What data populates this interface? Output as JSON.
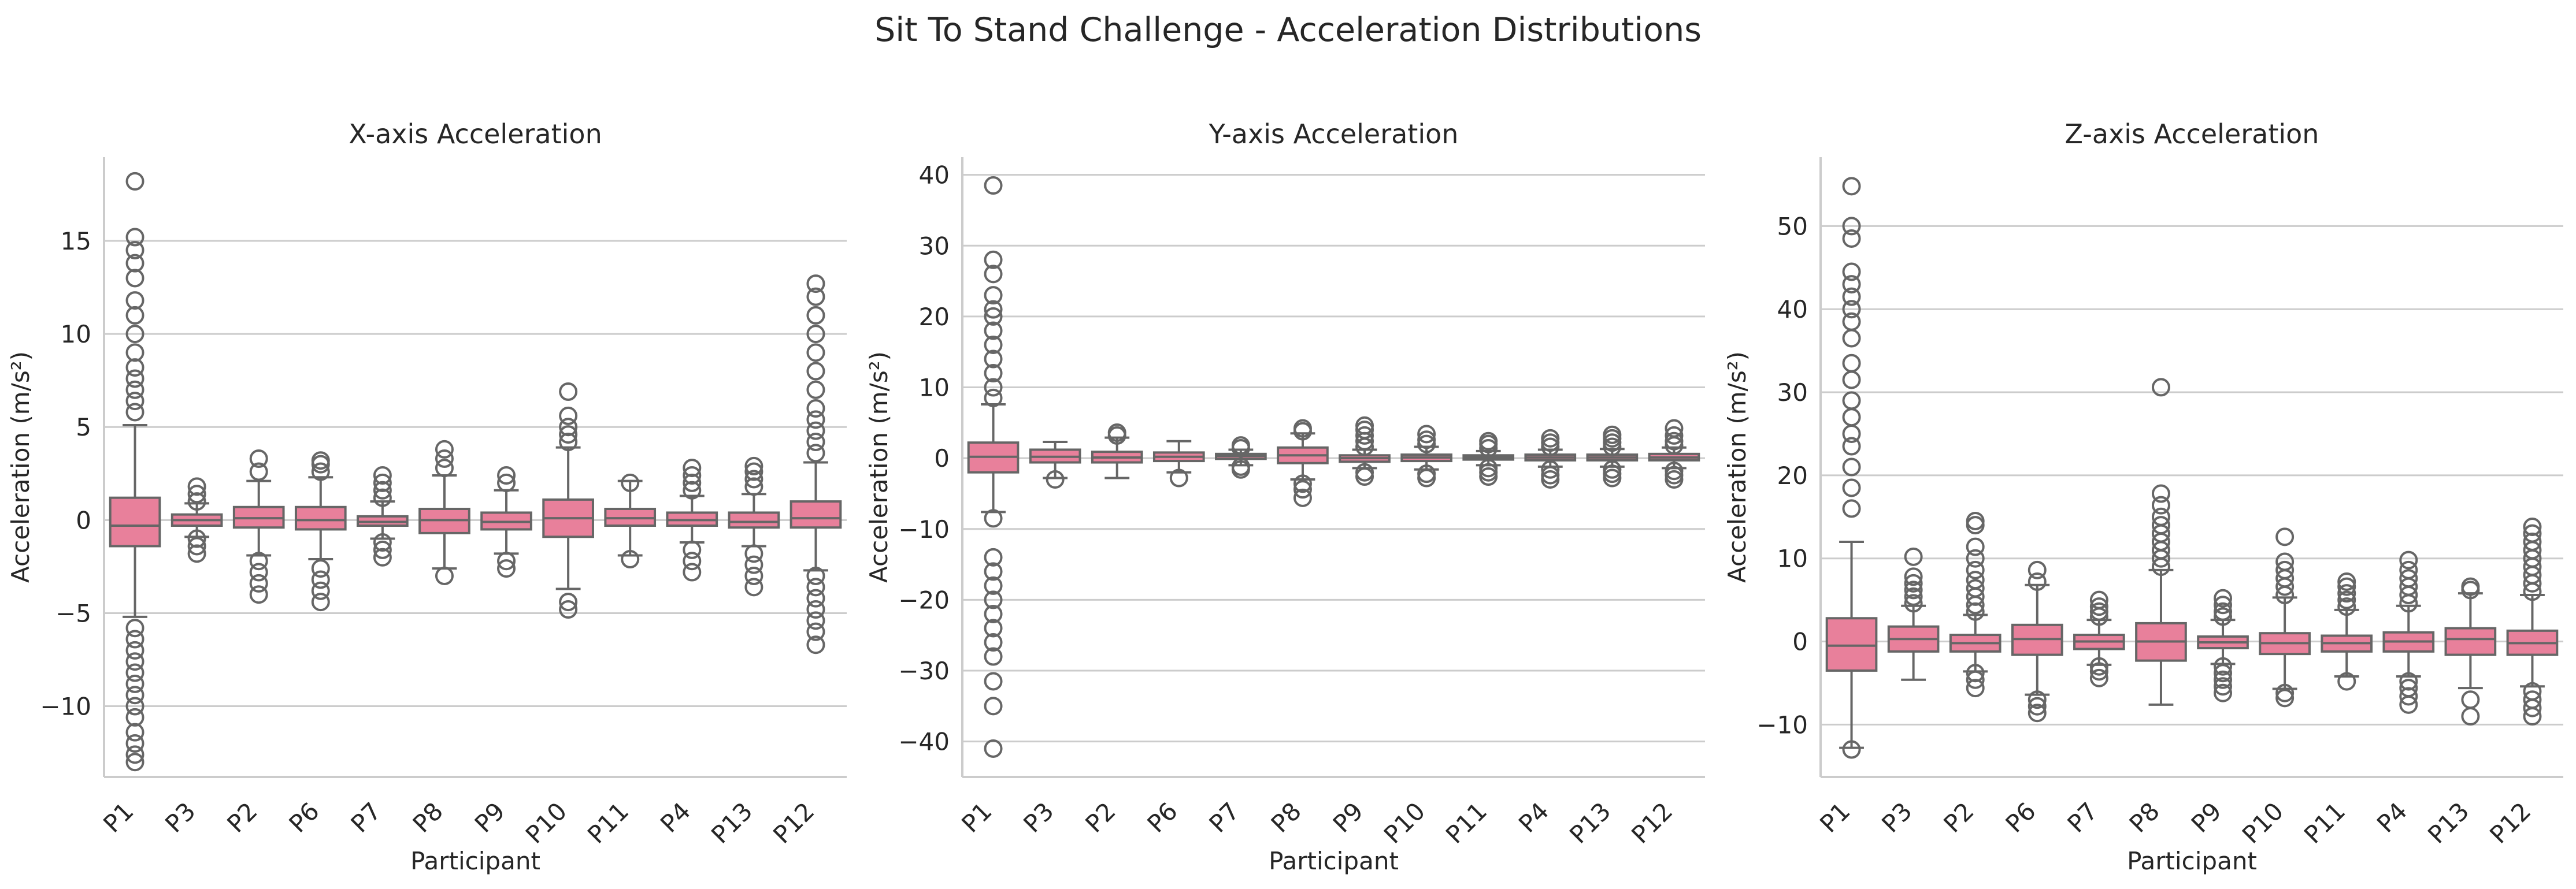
{
  "suptitle": "Sit To Stand Challenge - Acceleration Distributions",
  "style": {
    "box_color": "#e8809b",
    "line_color": "#666666",
    "grid_color": "#cccccc"
  },
  "chart_data": [
    {
      "type": "box",
      "title": "X-axis Acceleration",
      "xlabel": "Participant",
      "ylabel": "Acceleration (m/s²)",
      "ylim": [
        -13.8,
        19.5
      ],
      "yticks": [
        -10,
        -5,
        0,
        5,
        10,
        15
      ],
      "grid": "horizontal",
      "categories": [
        "P1",
        "P3",
        "P2",
        "P6",
        "P7",
        "P8",
        "P9",
        "P10",
        "P11",
        "P4",
        "P13",
        "P12"
      ],
      "boxes": [
        {
          "q1": -1.4,
          "median": -0.3,
          "q3": 1.2,
          "whislo": -5.2,
          "whishi": 5.1,
          "fliers": [
            -13.0,
            -12.6,
            -12.0,
            -11.4,
            -10.6,
            -10.0,
            -9.4,
            -8.8,
            -8.2,
            -7.6,
            -7.0,
            -6.4,
            -5.8,
            5.8,
            6.4,
            7.0,
            7.6,
            8.2,
            9.0,
            10.0,
            11.0,
            11.8,
            13.0,
            13.8,
            14.5,
            15.2,
            18.2
          ]
        },
        {
          "q1": -0.3,
          "median": 0.0,
          "q3": 0.3,
          "whislo": -0.9,
          "whishi": 0.9,
          "fliers": [
            -1.8,
            -1.4,
            -1.0,
            1.0,
            1.4,
            1.8
          ]
        },
        {
          "q1": -0.4,
          "median": 0.1,
          "q3": 0.7,
          "whislo": -1.9,
          "whishi": 2.1,
          "fliers": [
            -4.0,
            -3.4,
            -2.8,
            -2.2,
            2.6,
            3.3
          ]
        },
        {
          "q1": -0.5,
          "median": 0.0,
          "q3": 0.7,
          "whislo": -2.1,
          "whishi": 2.3,
          "fliers": [
            -4.4,
            -3.8,
            -3.2,
            -2.6,
            2.6,
            3.0,
            3.2
          ]
        },
        {
          "q1": -0.3,
          "median": -0.1,
          "q3": 0.2,
          "whislo": -1.0,
          "whishi": 1.0,
          "fliers": [
            -2.0,
            -1.6,
            -1.2,
            1.2,
            1.6,
            2.0,
            2.4
          ]
        },
        {
          "q1": -0.7,
          "median": 0.0,
          "q3": 0.6,
          "whislo": -2.6,
          "whishi": 2.4,
          "fliers": [
            -3.0,
            2.8,
            3.3,
            3.8
          ]
        },
        {
          "q1": -0.5,
          "median": -0.1,
          "q3": 0.4,
          "whislo": -1.8,
          "whishi": 1.6,
          "fliers": [
            -2.6,
            -2.2,
            2.0,
            2.4
          ]
        },
        {
          "q1": -0.9,
          "median": 0.1,
          "q3": 1.1,
          "whislo": -3.7,
          "whishi": 3.9,
          "fliers": [
            -4.8,
            -4.4,
            4.2,
            4.6,
            5.0,
            5.6,
            6.9
          ]
        },
        {
          "q1": -0.3,
          "median": 0.1,
          "q3": 0.6,
          "whislo": -1.9,
          "whishi": 2.1,
          "fliers": [
            -2.1,
            2.0
          ]
        },
        {
          "q1": -0.3,
          "median": 0.0,
          "q3": 0.4,
          "whislo": -1.2,
          "whishi": 1.3,
          "fliers": [
            -2.8,
            -2.2,
            -1.6,
            1.6,
            2.0,
            2.4,
            2.8
          ]
        },
        {
          "q1": -0.4,
          "median": -0.1,
          "q3": 0.4,
          "whislo": -1.4,
          "whishi": 1.4,
          "fliers": [
            -3.6,
            -3.0,
            -2.4,
            -1.8,
            1.8,
            2.2,
            2.6,
            2.9
          ]
        },
        {
          "q1": -0.4,
          "median": 0.1,
          "q3": 1.0,
          "whislo": -2.7,
          "whishi": 3.1,
          "fliers": [
            -6.7,
            -6.0,
            -5.4,
            -4.8,
            -4.2,
            -3.6,
            -3.0,
            3.6,
            4.2,
            4.8,
            5.4,
            6.0,
            7.0,
            8.0,
            9.0,
            10.0,
            11.0,
            12.0,
            12.7
          ]
        }
      ]
    },
    {
      "type": "box",
      "title": "Y-axis Acceleration",
      "xlabel": "Participant",
      "ylabel": "Acceleration (m/s²)",
      "ylim": [
        -45,
        42.5
      ],
      "yticks": [
        -40,
        -30,
        -20,
        -10,
        0,
        10,
        20,
        30,
        40
      ],
      "grid": "horizontal",
      "categories": [
        "P1",
        "P3",
        "P2",
        "P6",
        "P7",
        "P8",
        "P9",
        "P10",
        "P11",
        "P4",
        "P13",
        "P12"
      ],
      "boxes": [
        {
          "q1": -2.0,
          "median": 0.2,
          "q3": 2.2,
          "whislo": -7.6,
          "whishi": 7.6,
          "fliers": [
            -41.0,
            -35.0,
            -31.5,
            -28.0,
            -26.0,
            -24.0,
            -22.0,
            -20.0,
            -18.0,
            -16.0,
            -14.0,
            -8.5,
            8.5,
            10.0,
            12.0,
            14.0,
            16.0,
            18.0,
            20.0,
            21.0,
            23.0,
            26.0,
            28.0,
            38.5
          ]
        },
        {
          "q1": -0.6,
          "median": 0.2,
          "q3": 1.2,
          "whislo": -2.8,
          "whishi": 2.3,
          "fliers": [
            -3.0
          ]
        },
        {
          "q1": -0.6,
          "median": 0.1,
          "q3": 0.9,
          "whislo": -2.8,
          "whishi": 2.9,
          "fliers": [
            3.2,
            3.6
          ]
        },
        {
          "q1": -0.4,
          "median": 0.2,
          "q3": 0.8,
          "whislo": -2.0,
          "whishi": 2.4,
          "fliers": [
            -2.8
          ]
        },
        {
          "q1": -0.1,
          "median": 0.3,
          "q3": 0.6,
          "whislo": -1.0,
          "whishi": 1.2,
          "fliers": [
            -1.6,
            -1.2,
            1.4,
            1.8
          ]
        },
        {
          "q1": -0.7,
          "median": 0.4,
          "q3": 1.5,
          "whislo": -3.0,
          "whishi": 3.5,
          "fliers": [
            -5.6,
            -4.4,
            -3.6,
            3.8,
            4.2
          ]
        },
        {
          "q1": -0.5,
          "median": 0.0,
          "q3": 0.4,
          "whislo": -1.4,
          "whishi": 1.2,
          "fliers": [
            -2.6,
            -2.0,
            1.6,
            2.4,
            3.2,
            4.0,
            4.6
          ]
        },
        {
          "q1": -0.4,
          "median": 0.1,
          "q3": 0.5,
          "whislo": -1.6,
          "whishi": 1.6,
          "fliers": [
            -2.8,
            -2.2,
            2.0,
            2.6,
            3.4
          ]
        },
        {
          "q1": -0.2,
          "median": 0.1,
          "q3": 0.4,
          "whislo": -1.0,
          "whishi": 1.0,
          "fliers": [
            -2.6,
            -2.0,
            -1.4,
            1.4,
            2.0,
            2.4
          ]
        },
        {
          "q1": -0.3,
          "median": 0.1,
          "q3": 0.5,
          "whislo": -1.2,
          "whishi": 1.2,
          "fliers": [
            -3.0,
            -2.4,
            -1.6,
            1.6,
            2.2,
            2.8
          ]
        },
        {
          "q1": -0.3,
          "median": 0.1,
          "q3": 0.5,
          "whislo": -1.2,
          "whishi": 1.3,
          "fliers": [
            -2.8,
            -2.2,
            -1.6,
            1.6,
            2.2,
            2.8,
            3.3
          ]
        },
        {
          "q1": -0.3,
          "median": 0.1,
          "q3": 0.6,
          "whislo": -1.4,
          "whishi": 1.5,
          "fliers": [
            -3.0,
            -2.4,
            -1.8,
            1.8,
            2.4,
            3.2,
            4.2
          ]
        }
      ]
    },
    {
      "type": "box",
      "title": "Z-axis Acceleration",
      "xlabel": "Participant",
      "ylabel": "Acceleration (m/s²)",
      "ylim": [
        -16.3,
        58.3
      ],
      "yticks": [
        -10,
        0,
        10,
        20,
        30,
        40,
        50
      ],
      "grid": "horizontal",
      "categories": [
        "P1",
        "P3",
        "P2",
        "P6",
        "P7",
        "P8",
        "P9",
        "P10",
        "P11",
        "P4",
        "P13",
        "P12"
      ],
      "boxes": [
        {
          "q1": -3.5,
          "median": -0.5,
          "q3": 2.8,
          "whislo": -12.8,
          "whishi": 12.0,
          "fliers": [
            -13.0,
            16.0,
            18.5,
            21.0,
            23.5,
            25.0,
            27.0,
            29.0,
            31.5,
            33.5,
            36.5,
            38.5,
            40.0,
            41.5,
            43.0,
            44.5,
            48.5,
            50.0,
            54.8
          ]
        },
        {
          "q1": -1.2,
          "median": 0.3,
          "q3": 1.8,
          "whislo": -4.6,
          "whishi": 4.3,
          "fliers": [
            4.6,
            5.4,
            6.2,
            7.0,
            7.8,
            10.2
          ]
        },
        {
          "q1": -1.2,
          "median": -0.2,
          "q3": 0.8,
          "whislo": -3.6,
          "whishi": 3.2,
          "fliers": [
            -5.6,
            -4.6,
            -3.8,
            3.6,
            4.4,
            5.4,
            6.4,
            7.4,
            8.6,
            10.0,
            11.4,
            14.0,
            14.5
          ]
        },
        {
          "q1": -1.6,
          "median": 0.3,
          "q3": 2.0,
          "whislo": -6.4,
          "whishi": 6.8,
          "fliers": [
            -8.6,
            -7.8,
            -7.0,
            7.2,
            8.6
          ]
        },
        {
          "q1": -0.9,
          "median": 0.0,
          "q3": 0.8,
          "whislo": -2.8,
          "whishi": 2.6,
          "fliers": [
            -4.4,
            -3.6,
            -3.0,
            3.0,
            3.6,
            4.2,
            5.0
          ]
        },
        {
          "q1": -2.3,
          "median": 0.0,
          "q3": 2.2,
          "whislo": -7.6,
          "whishi": 8.6,
          "fliers": [
            9.0,
            10.0,
            11.0,
            12.0,
            13.0,
            14.0,
            15.0,
            16.4,
            17.8,
            30.6
          ]
        },
        {
          "q1": -0.8,
          "median": -0.1,
          "q3": 0.6,
          "whislo": -2.7,
          "whishi": 2.6,
          "fliers": [
            -6.2,
            -5.4,
            -4.6,
            -3.8,
            -3.0,
            3.0,
            3.6,
            4.4,
            5.2
          ]
        },
        {
          "q1": -1.5,
          "median": -0.2,
          "q3": 1.0,
          "whislo": -5.7,
          "whishi": 5.3,
          "fliers": [
            -6.8,
            -6.2,
            5.6,
            6.6,
            7.6,
            8.6,
            9.6,
            12.6
          ]
        },
        {
          "q1": -1.2,
          "median": -0.2,
          "q3": 0.7,
          "whislo": -4.2,
          "whishi": 3.8,
          "fliers": [
            -4.8,
            4.2,
            5.0,
            5.8,
            6.6,
            7.2
          ]
        },
        {
          "q1": -1.2,
          "median": 0.0,
          "q3": 1.1,
          "whislo": -4.2,
          "whishi": 4.3,
          "fliers": [
            -7.6,
            -6.6,
            -5.6,
            -4.8,
            4.6,
            5.6,
            6.6,
            7.6,
            8.6,
            9.8
          ]
        },
        {
          "q1": -1.6,
          "median": 0.3,
          "q3": 1.6,
          "whislo": -5.6,
          "whishi": 5.8,
          "fliers": [
            -9.0,
            -7.0,
            6.2,
            6.6
          ]
        },
        {
          "q1": -1.6,
          "median": -0.2,
          "q3": 1.3,
          "whislo": -5.4,
          "whishi": 5.6,
          "fliers": [
            -9.0,
            -8.0,
            -7.0,
            -6.0,
            6.0,
            7.0,
            8.0,
            9.0,
            10.0,
            11.0,
            12.0,
            13.0,
            13.8
          ]
        }
      ]
    }
  ]
}
